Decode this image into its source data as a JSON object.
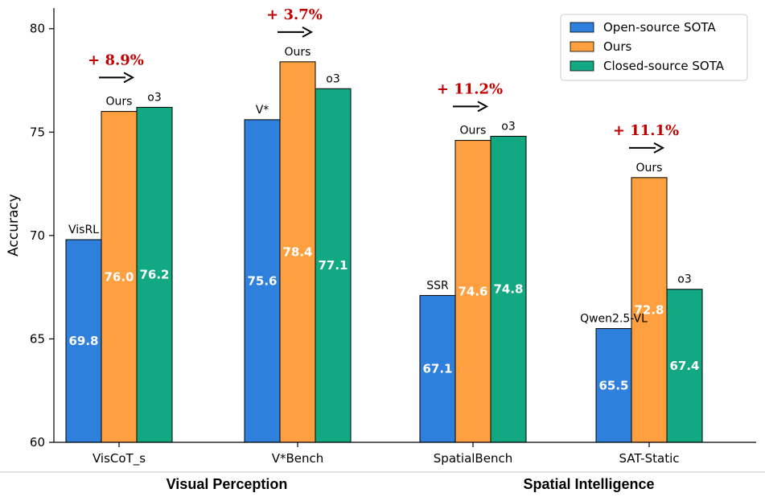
{
  "chart_data": {
    "type": "bar",
    "title": "",
    "xlabel": "",
    "ylabel": "Accuracy",
    "ylim": [
      60,
      81
    ],
    "yticks": [
      60,
      65,
      70,
      75,
      80
    ],
    "categories": [
      "VisCoT_s",
      "V*Bench",
      "SpatialBench",
      "SAT-Static"
    ],
    "series": [
      {
        "name": "Open-source SOTA",
        "color": "#2f80dd",
        "values": [
          69.8,
          75.6,
          67.1,
          65.5
        ],
        "top_labels": [
          "VisRL",
          "V*",
          "SSR",
          "Qwen2.5-VL"
        ]
      },
      {
        "name": "Ours",
        "color": "#ffa040",
        "values": [
          76.0,
          78.4,
          74.6,
          72.8
        ],
        "top_labels": [
          "Ours",
          "Ours",
          "Ours",
          "Ours"
        ]
      },
      {
        "name": "Closed-source SOTA",
        "color": "#12a882",
        "values": [
          76.2,
          77.1,
          74.8,
          67.4
        ],
        "top_labels": [
          "o3",
          "o3",
          "o3",
          "o3"
        ]
      }
    ],
    "gains": [
      "+ 8.9%",
      "+ 3.7%",
      "+ 11.2%",
      "+ 11.1%"
    ],
    "gain_color": "#c00000",
    "groups": [
      "Visual Perception",
      "Spatial Intelligence"
    ],
    "legend_position": "top-right",
    "grid": false
  }
}
